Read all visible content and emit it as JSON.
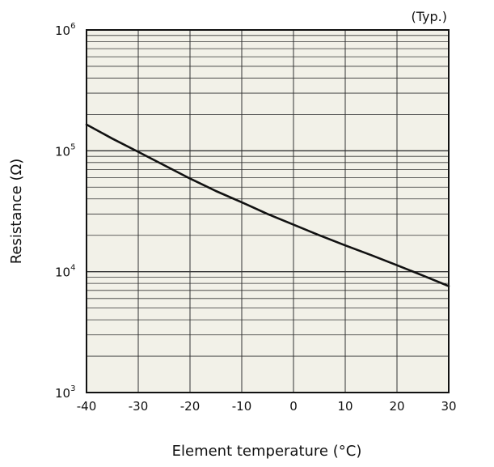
{
  "chart_data": {
    "type": "line",
    "note": "(Typ.)",
    "xlabel": "Element temperature (°C)",
    "ylabel": "Resistance (Ω)",
    "xlim": [
      -40,
      30
    ],
    "ylim": [
      1000,
      1000000
    ],
    "y_scale": "log",
    "x_ticks": [
      "-40",
      "-30",
      "-20",
      "-10",
      "0",
      "10",
      "20",
      "30"
    ],
    "y_ticks": [
      {
        "base": "10",
        "exp": "3"
      },
      {
        "base": "10",
        "exp": "4"
      },
      {
        "base": "10",
        "exp": "5"
      },
      {
        "base": "10",
        "exp": "6"
      }
    ],
    "grid": true,
    "colors": {
      "plot_bg": "#f2f1e8",
      "grid": "#333333",
      "line": "#111111"
    },
    "series": [
      {
        "x": [
          -40,
          -35,
          -30,
          -25,
          -20,
          -15,
          -10,
          -5,
          0,
          5,
          10,
          15,
          20,
          25,
          30
        ],
        "y": [
          165000,
          126000,
          98000,
          76000,
          59000,
          46500,
          37500,
          30000,
          24500,
          20000,
          16500,
          13700,
          11300,
          9300,
          7600
        ]
      }
    ]
  }
}
